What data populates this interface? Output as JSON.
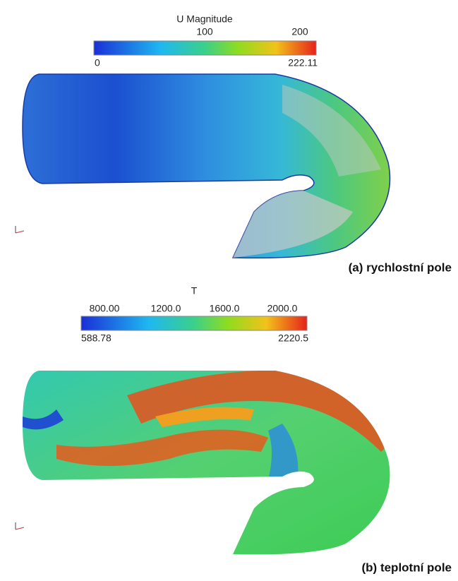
{
  "panels": [
    {
      "scalar": "U Magnitude",
      "ticks": [
        "100",
        "200"
      ],
      "min": "0",
      "max": "222.11",
      "caption": "(a) rychlostní pole"
    },
    {
      "scalar": "T",
      "ticks": [
        "800.00",
        "1200.0",
        "1600.0",
        "2000.0"
      ],
      "min": "588.78",
      "max": "2220.5",
      "caption": "(b) teplotní pole"
    }
  ]
}
